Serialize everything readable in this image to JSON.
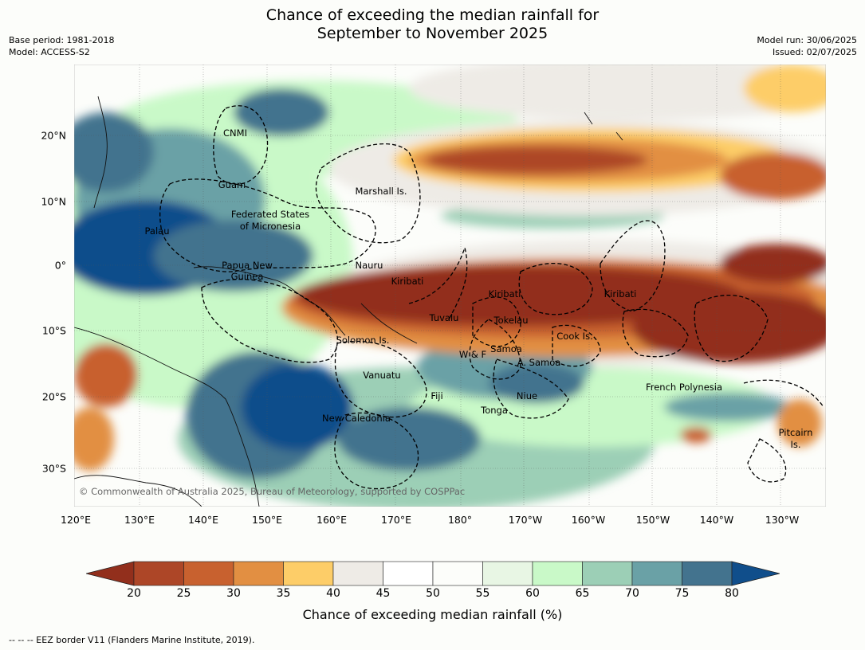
{
  "title_line1": "Chance of exceeding the median rainfall for",
  "title_line2": "September to November 2025",
  "base_period": "Base period: 1981-2018",
  "model": "Model: ACCESS-S2",
  "model_run": "Model run: 30/06/2025",
  "issued": "Issued: 02/07/2025",
  "copyright": "© Commonwealth of Australia 2025, Bureau of Meteorology, supported by COSPPac",
  "lon_labels": [
    "120°E",
    "130°E",
    "140°E",
    "150°E",
    "160°E",
    "170°E",
    "180°",
    "170°W",
    "160°W",
    "150°W",
    "140°W",
    "130°W"
  ],
  "lat_labels": [
    "20°N",
    "10°N",
    "0°",
    "10°S",
    "20°S",
    "30°S"
  ],
  "regions": [
    "CNMI",
    "Guam",
    "Marshall Is.",
    "Federated States",
    "of Micronesia",
    "Palau",
    "Papua New",
    "Guinea",
    "Nauru",
    "Kiribati",
    "Kiribati",
    "Kiribati",
    "Tuvalu",
    "Tokelau",
    "Cook Is.",
    "Solomon Is.",
    "Samoa",
    "W & F",
    "A. Samoa",
    "Vanuatu",
    "Fiji",
    "Niue",
    "Tonga",
    "French Polynesia",
    "New Caledonia",
    "Pitcairn",
    "Is."
  ],
  "colorbar": {
    "ticks": [
      "20",
      "25",
      "30",
      "35",
      "40",
      "45",
      "50",
      "55",
      "60",
      "65",
      "70",
      "75",
      "80"
    ],
    "colors": {
      "lt20": "#922f1c",
      "20-25": "#ad4627",
      "25-30": "#c8612f",
      "30-35": "#e28f42",
      "35-40": "#fdcd68",
      "40-45": "#eeebe6",
      "45-50": "#ffffff",
      "50-55": "#fcfdfa",
      "55-60": "#e8f6e4",
      "60-65": "#c9f9c8",
      "65-70": "#9ccfb6",
      "70-75": "#6aa1a6",
      "75-80": "#43738e",
      "gt80": "#104e8b"
    },
    "title": "Chance of exceeding median rainfall (%)"
  },
  "footnote": "-- -- -- EEZ border V11 (Flanders Marine Institute, 2019)."
}
